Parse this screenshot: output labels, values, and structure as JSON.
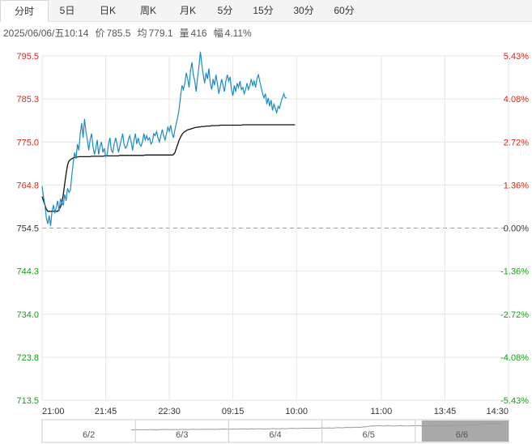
{
  "tabs": [
    "分时",
    "5日",
    "日K",
    "周K",
    "月K",
    "5分",
    "15分",
    "30分",
    "60分"
  ],
  "active_tab": 0,
  "info": {
    "datetime": "2025/06/06/五10:14",
    "price_label": "价",
    "price": "785.5",
    "avg_label": "均",
    "avg": "779.1",
    "vol_label": "量",
    "vol": "416",
    "pct_label": "幅",
    "pct": "4.11%"
  },
  "colors": {
    "up": "#e0241b",
    "down": "#11a311",
    "price_line": "#1a8ac8",
    "avg_line": "#111111",
    "grid": "#e6e6e6",
    "baseline": "#9a9a9a"
  },
  "chart_data": {
    "type": "line",
    "title": "",
    "ylim": [
      713.5,
      795.5
    ],
    "base_price": 754.5,
    "y_ticks_left": [
      "795.5",
      "785.3",
      "775.0",
      "764.8",
      "754.5",
      "744.3",
      "734.0",
      "723.8",
      "713.5"
    ],
    "y_ticks_right": [
      "5.43%",
      "4.08%",
      "2.72%",
      "1.36%",
      "0.00%",
      "-1.36%",
      "-2.72%",
      "-4.08%",
      "-5.43%"
    ],
    "x_ticks": [
      "21:00",
      "21:45",
      "22:30",
      "09:15",
      "10:00",
      "11:00",
      "13:45",
      "14:30"
    ],
    "x_tick_idx": [
      0,
      45,
      90,
      135,
      180,
      240,
      285,
      330
    ],
    "x_total": 330,
    "grid": true,
    "series": [
      {
        "values": [
          764.5,
          762.0,
          760.0,
          757.0,
          755.5,
          757.5,
          755.0,
          758.5,
          760.0,
          758.0,
          759.5,
          761.0,
          758.5,
          761.5,
          760.5,
          760.0,
          762.5,
          761.0,
          764.0,
          763.0,
          763.5,
          767.0,
          770.0,
          772.5,
          771.0,
          774.5,
          773.0,
          777.0,
          779.5,
          776.0,
          780.5,
          777.5,
          775.5,
          773.0,
          775.5,
          777.0,
          774.0,
          772.0,
          773.5,
          775.5,
          772.0,
          774.0,
          775.0,
          772.5,
          773.5,
          771.5,
          772.0,
          774.5,
          776.0,
          773.0,
          772.5,
          774.5,
          776.0,
          774.5,
          772.5,
          774.0,
          775.5,
          777.0,
          774.5,
          773.5,
          774.0,
          775.5,
          776.5,
          775.0,
          773.0,
          775.5,
          777.0,
          774.5,
          776.0,
          774.5,
          774.0,
          775.0,
          777.0,
          775.5,
          776.5,
          775.5,
          776.0,
          774.5,
          775.0,
          777.0,
          776.5,
          777.5,
          776.0,
          775.0,
          776.5,
          778.0,
          776.5,
          775.5,
          777.0,
          778.5,
          777.5,
          779.0,
          777.0,
          776.0,
          778.0,
          779.5,
          781.0,
          783.0,
          786.0,
          788.5,
          787.5,
          789.0,
          791.5,
          790.0,
          788.0,
          792.0,
          794.0,
          791.0,
          789.5,
          787.0,
          790.5,
          793.0,
          796.5,
          793.5,
          791.0,
          789.0,
          791.5,
          790.0,
          792.5,
          789.0,
          787.5,
          790.0,
          788.5,
          791.0,
          789.0,
          786.5,
          788.0,
          790.0,
          788.5,
          787.0,
          789.5,
          791.0,
          789.5,
          790.5,
          787.5,
          786.0,
          788.5,
          787.0,
          789.0,
          788.0,
          789.5,
          787.5,
          788.0,
          786.5,
          787.5,
          789.0,
          787.5,
          788.5,
          790.0,
          788.5,
          789.5,
          788.0,
          790.0,
          791.0,
          789.5,
          788.0,
          786.5,
          785.5,
          786.5,
          784.0,
          785.5,
          783.5,
          785.0,
          782.5,
          784.0,
          783.0,
          782.0,
          783.5,
          783.0,
          784.5,
          785.5,
          786.5,
          785.5,
          785.5
        ],
        "avg": [
          762.0,
          761.0,
          760.0,
          759.0,
          758.5,
          758.5,
          758.5,
          758.5,
          758.5,
          758.5,
          758.5,
          758.5,
          759.0,
          759.5,
          760.5,
          762.5,
          765.0,
          767.5,
          769.5,
          770.5,
          770.8,
          771.0,
          771.2,
          771.3,
          771.4,
          771.4,
          771.5,
          771.5,
          771.5,
          771.5,
          771.5,
          771.5,
          771.5,
          771.5,
          771.5,
          771.6,
          771.6,
          771.6,
          771.6,
          771.6,
          771.6,
          771.6,
          771.6,
          771.6,
          771.7,
          771.7,
          771.7,
          771.7,
          771.7,
          771.7,
          771.7,
          771.7,
          771.7,
          771.7,
          771.7,
          771.8,
          771.8,
          771.8,
          771.8,
          771.8,
          771.8,
          771.8,
          771.8,
          771.8,
          771.8,
          771.8,
          771.8,
          771.8,
          771.8,
          771.8,
          771.8,
          771.8,
          771.8,
          771.9,
          771.9,
          771.9,
          771.9,
          771.9,
          771.9,
          771.9,
          771.9,
          771.9,
          771.9,
          771.9,
          771.9,
          771.9,
          771.9,
          771.9,
          771.9,
          771.9,
          771.9,
          771.9,
          771.9,
          772.0,
          772.5,
          773.5,
          774.5,
          775.5,
          776.2,
          776.8,
          777.2,
          777.5,
          777.7,
          777.9,
          778.0,
          778.1,
          778.2,
          778.3,
          778.4,
          778.5,
          778.5,
          778.6,
          778.6,
          778.7,
          778.7,
          778.7,
          778.8,
          778.8,
          778.8,
          778.8,
          778.9,
          778.9,
          778.9,
          778.9,
          778.9,
          778.9,
          779.0,
          779.0,
          779.0,
          779.0,
          779.0,
          779.0,
          779.0,
          779.0,
          779.0,
          779.0,
          779.0,
          779.0,
          779.0,
          779.0,
          779.0,
          779.0,
          779.1,
          779.1,
          779.1,
          779.1,
          779.1,
          779.1,
          779.1,
          779.1,
          779.1,
          779.1,
          779.1,
          779.1,
          779.1,
          779.1,
          779.1,
          779.1,
          779.1,
          779.1,
          779.1,
          779.1,
          779.1,
          779.1,
          779.1,
          779.1,
          779.1,
          779.1,
          779.1,
          779.1,
          779.1,
          779.1,
          779.1,
          779.1,
          779.1,
          779.1,
          779.1,
          779.1,
          779.1,
          779.1
        ]
      }
    ]
  },
  "navigator": {
    "labels": [
      "6/2",
      "6/3",
      "6/4",
      "6/5",
      "6/6"
    ],
    "values": [
      0.55,
      0.55,
      0.56,
      0.55,
      0.56,
      0.55,
      0.56,
      0.56,
      0.55,
      0.56,
      0.56,
      0.57,
      0.56,
      0.56,
      0.57,
      0.56,
      0.57,
      0.57,
      0.56,
      0.57,
      0.58,
      0.57,
      0.57,
      0.58,
      0.57,
      0.58,
      0.58,
      0.57,
      0.58,
      0.58,
      0.59,
      0.58,
      0.58,
      0.59,
      0.58,
      0.59,
      0.6,
      0.59,
      0.59,
      0.6,
      0.59,
      0.6,
      0.6,
      0.59,
      0.6,
      0.6,
      0.61,
      0.6,
      0.6,
      0.61,
      0.6,
      0.61,
      0.62,
      0.61,
      0.61,
      0.62,
      0.63,
      0.62,
      0.62,
      0.63,
      0.62,
      0.63,
      0.64,
      0.63,
      0.64,
      0.63,
      0.64,
      0.65,
      0.64,
      0.65,
      0.66,
      0.65,
      0.66,
      0.67,
      0.66,
      0.68,
      0.69,
      0.71,
      0.73,
      0.72,
      0.74,
      0.73,
      0.72,
      0.74,
      0.73,
      0.72,
      0.73,
      0.74,
      0.73,
      0.72,
      0.73,
      0.74,
      0.73,
      0.74,
      0.73,
      0.72,
      0.73,
      0.74,
      0.73,
      0.75,
      0.74,
      0.73,
      0.74,
      0.75,
      0.74,
      0.75,
      0.76,
      0.75,
      0.76,
      0.77,
      0.76,
      0.77,
      0.78,
      0.8,
      0.82,
      0.83,
      0.82,
      0.81,
      0.82,
      0.83,
      0.82
    ]
  }
}
